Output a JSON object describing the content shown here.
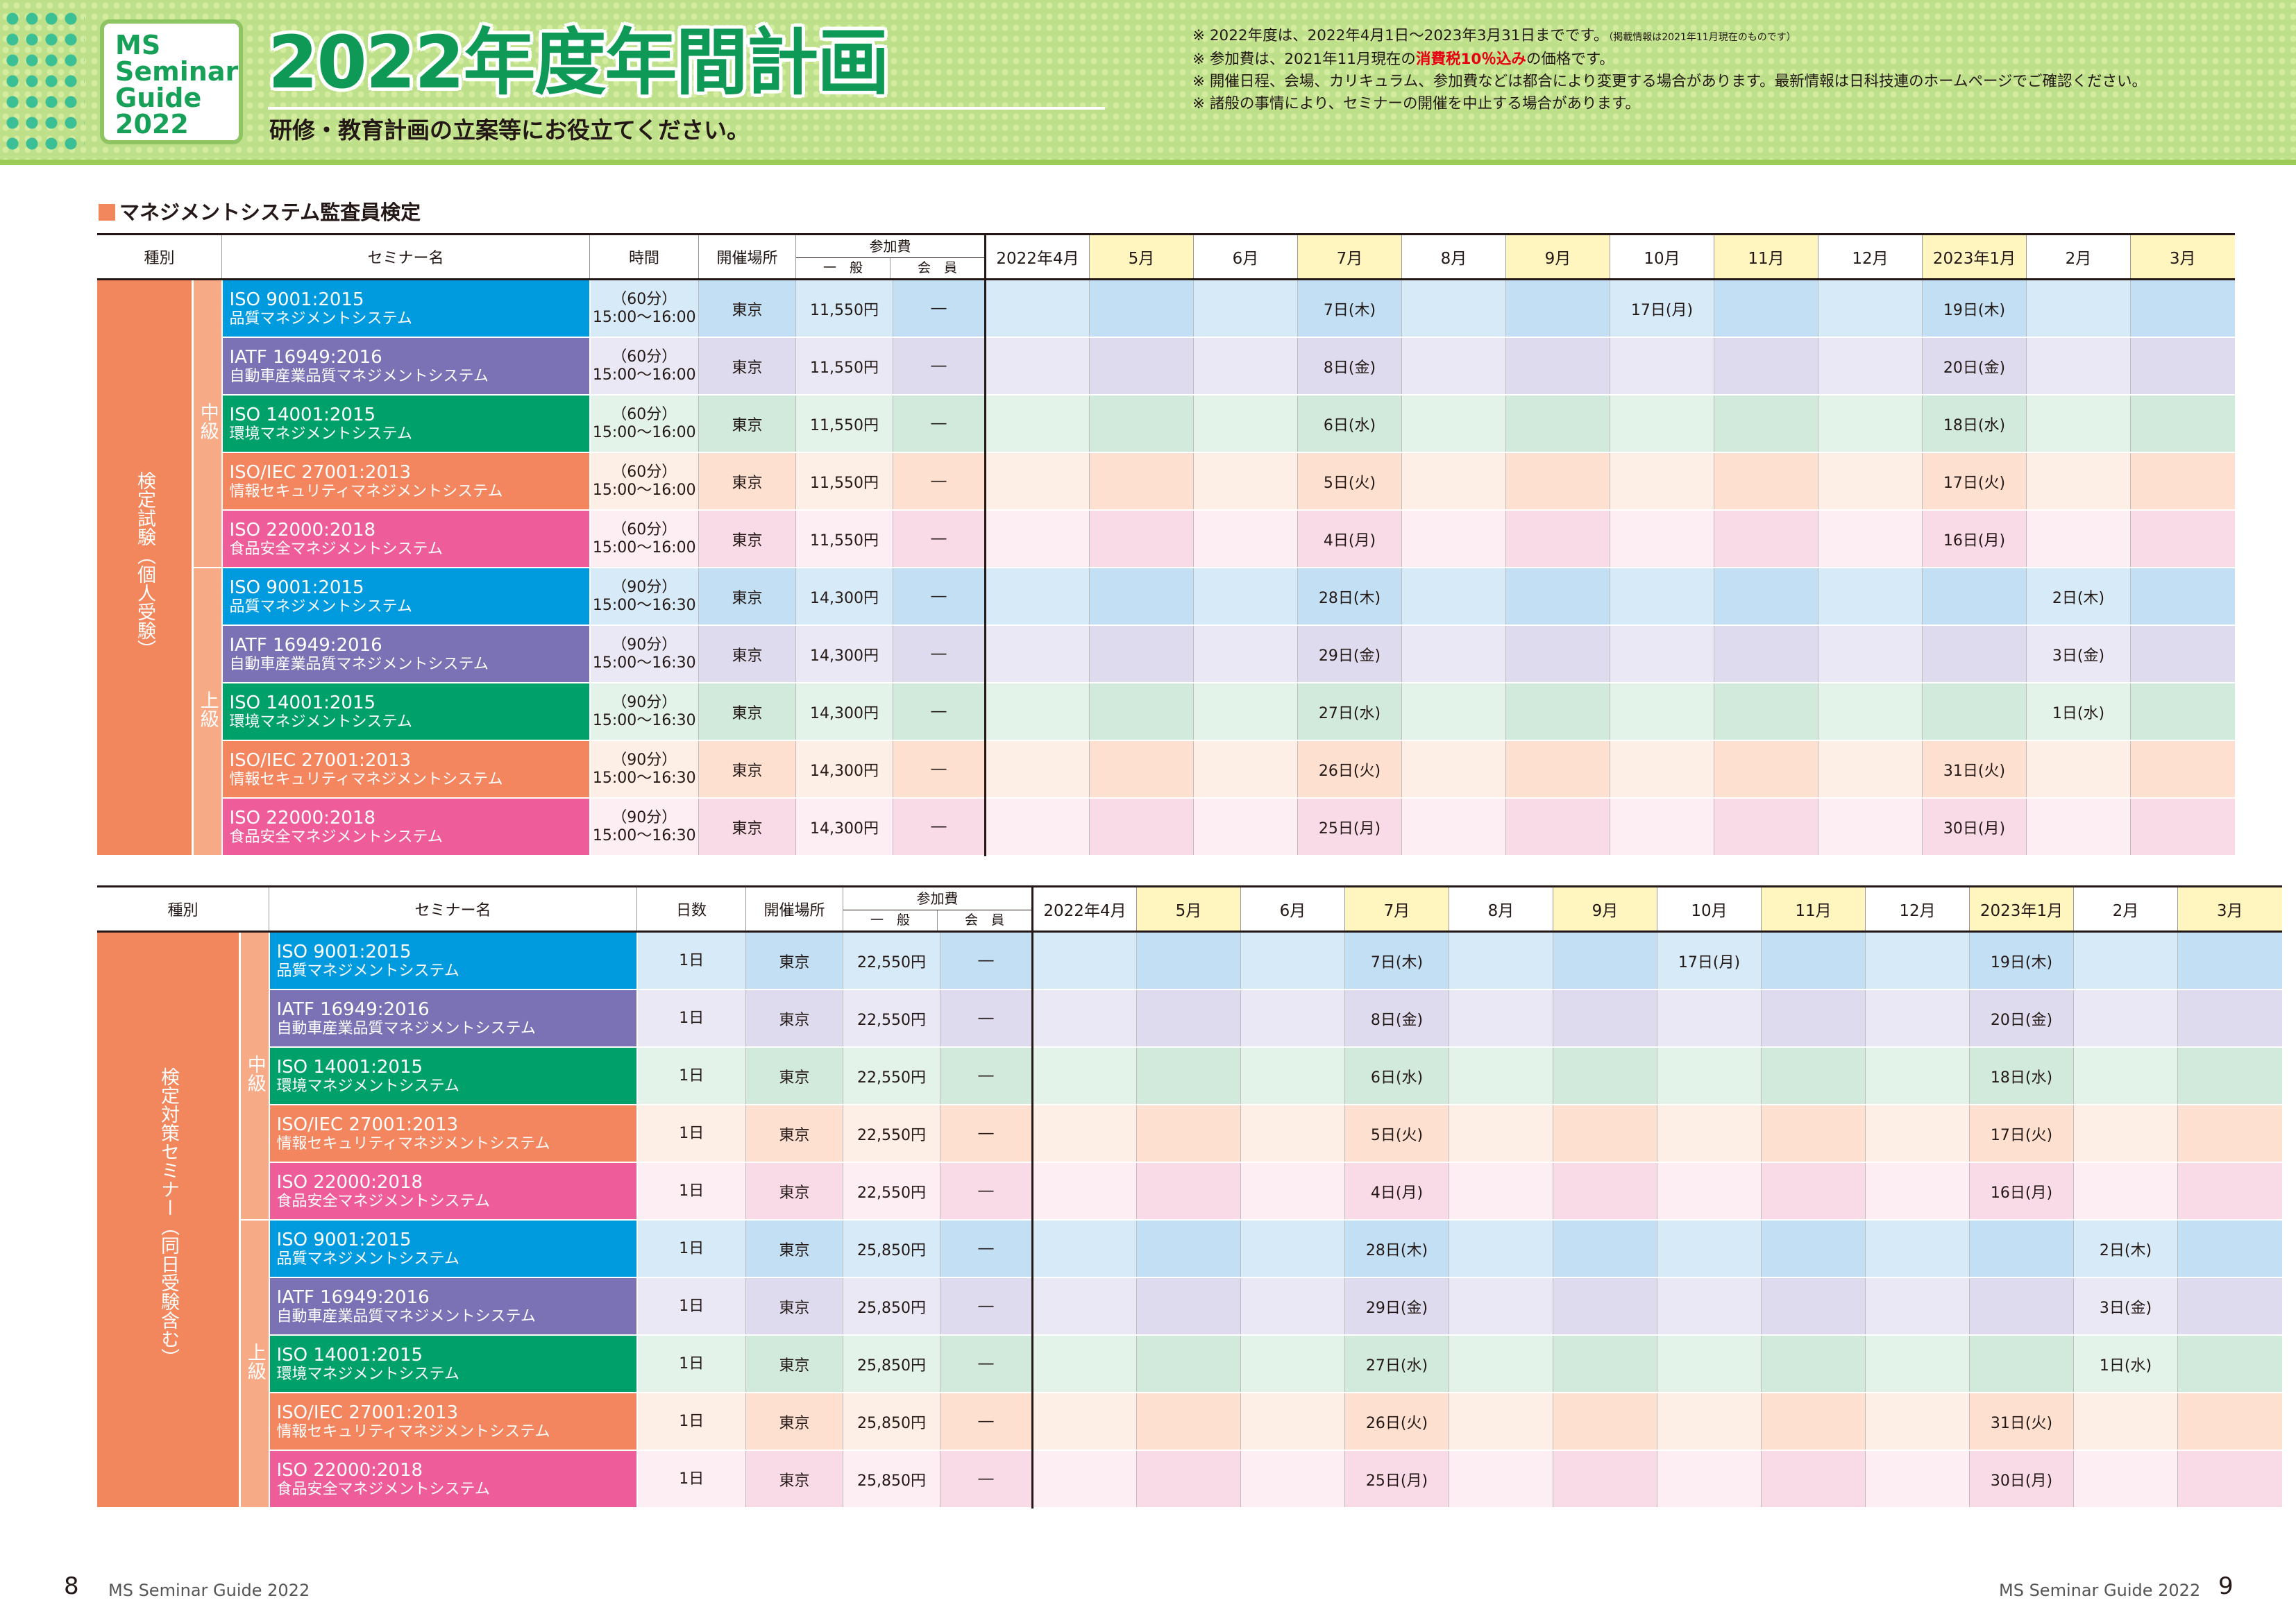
{
  "header": {
    "logo_lines": [
      "MS",
      "Seminar",
      "Guide",
      "2022"
    ],
    "title": "2022年度年間計画",
    "subtitle": "研修・教育計画の立案等にお役立てください。",
    "notes": [
      {
        "text": "※ 2022年度は、2022年4月1日～2023年3月31日までです。",
        "small": "（掲載情報は2021年11月現在のものです）"
      },
      {
        "pre": "※ 参加費は、2021年11月現在の",
        "red": "消費税10％込み",
        "post": "の価格です。"
      },
      {
        "text": "※ 開催日程、会場、カリキュラム、参加費などは都合により変更する場合があります。最新情報は日科技連のホームページでご確認ください。"
      },
      {
        "text": "※ 諸般の事情により、セミナーの開催を中止する場合があります。"
      }
    ]
  },
  "section_title": "マネジメントシステム監査員検定",
  "months": [
    "2022年4月",
    "5月",
    "6月",
    "7月",
    "8月",
    "9月",
    "10月",
    "11月",
    "12月",
    "2023年1月",
    "2月",
    "3月"
  ],
  "table1": {
    "headers": {
      "kind": "種別",
      "name": "セミナー名",
      "time": "時間",
      "place": "開催場所",
      "fee": "参加費",
      "fee_general": "一　般",
      "fee_member": "会　員"
    },
    "side_label": "検定試験（個人受験）",
    "levels": [
      "中級",
      "上級"
    ],
    "rows": [
      {
        "color": "blue",
        "name1": "ISO 9001:2015",
        "name2": "品質マネジメントシステム",
        "time1": "（60分）",
        "time2": "15:00～16:00",
        "place": "東京",
        "fee": "11,550円",
        "member": "―",
        "dates": [
          "",
          "",
          "",
          "7日(木)",
          "",
          "",
          "17日(月)",
          "",
          "",
          "19日(木)",
          "",
          ""
        ]
      },
      {
        "color": "purple",
        "name1": "IATF 16949:2016",
        "name2": "自動車産業品質マネジメントシステム",
        "time1": "（60分）",
        "time2": "15:00～16:00",
        "place": "東京",
        "fee": "11,550円",
        "member": "―",
        "dates": [
          "",
          "",
          "",
          "8日(金)",
          "",
          "",
          "",
          "",
          "",
          "20日(金)",
          "",
          ""
        ]
      },
      {
        "color": "green",
        "name1": "ISO 14001:2015",
        "name2": "環境マネジメントシステム",
        "time1": "（60分）",
        "time2": "15:00～16:00",
        "place": "東京",
        "fee": "11,550円",
        "member": "―",
        "dates": [
          "",
          "",
          "",
          "6日(水)",
          "",
          "",
          "",
          "",
          "",
          "18日(水)",
          "",
          ""
        ]
      },
      {
        "color": "orange",
        "name1": "ISO/IEC 27001:2013",
        "name2": "情報セキュリティマネジメントシステム",
        "time1": "（60分）",
        "time2": "15:00～16:00",
        "place": "東京",
        "fee": "11,550円",
        "member": "―",
        "dates": [
          "",
          "",
          "",
          "5日(火)",
          "",
          "",
          "",
          "",
          "",
          "17日(火)",
          "",
          ""
        ]
      },
      {
        "color": "pink",
        "name1": "ISO 22000:2018",
        "name2": "食品安全マネジメントシステム",
        "time1": "（60分）",
        "time2": "15:00～16:00",
        "place": "東京",
        "fee": "11,550円",
        "member": "―",
        "dates": [
          "",
          "",
          "",
          "4日(月)",
          "",
          "",
          "",
          "",
          "",
          "16日(月)",
          "",
          ""
        ]
      },
      {
        "color": "blue",
        "name1": "ISO 9001:2015",
        "name2": "品質マネジメントシステム",
        "time1": "（90分）",
        "time2": "15:00～16:30",
        "place": "東京",
        "fee": "14,300円",
        "member": "―",
        "dates": [
          "",
          "",
          "",
          "28日(木)",
          "",
          "",
          "",
          "",
          "",
          "",
          "2日(木)",
          ""
        ]
      },
      {
        "color": "purple",
        "name1": "IATF 16949:2016",
        "name2": "自動車産業品質マネジメントシステム",
        "time1": "（90分）",
        "time2": "15:00～16:30",
        "place": "東京",
        "fee": "14,300円",
        "member": "―",
        "dates": [
          "",
          "",
          "",
          "29日(金)",
          "",
          "",
          "",
          "",
          "",
          "",
          "3日(金)",
          ""
        ]
      },
      {
        "color": "green",
        "name1": "ISO 14001:2015",
        "name2": "環境マネジメントシステム",
        "time1": "（90分）",
        "time2": "15:00～16:30",
        "place": "東京",
        "fee": "14,300円",
        "member": "―",
        "dates": [
          "",
          "",
          "",
          "27日(水)",
          "",
          "",
          "",
          "",
          "",
          "",
          "1日(水)",
          ""
        ]
      },
      {
        "color": "orange",
        "name1": "ISO/IEC 27001:2013",
        "name2": "情報セキュリティマネジメントシステム",
        "time1": "（90分）",
        "time2": "15:00～16:30",
        "place": "東京",
        "fee": "14,300円",
        "member": "―",
        "dates": [
          "",
          "",
          "",
          "26日(火)",
          "",
          "",
          "",
          "",
          "",
          "31日(火)",
          "",
          ""
        ]
      },
      {
        "color": "pink",
        "name1": "ISO 22000:2018",
        "name2": "食品安全マネジメントシステム",
        "time1": "（90分）",
        "time2": "15:00～16:30",
        "place": "東京",
        "fee": "14,300円",
        "member": "―",
        "dates": [
          "",
          "",
          "",
          "25日(月)",
          "",
          "",
          "",
          "",
          "",
          "30日(月)",
          "",
          ""
        ]
      }
    ]
  },
  "table2": {
    "headers": {
      "kind": "種別",
      "name": "セミナー名",
      "time": "日数",
      "place": "開催場所",
      "fee": "参加費",
      "fee_general": "一　般",
      "fee_member": "会　員"
    },
    "side_label": "検定対策セミナー（同日受験含む）",
    "levels": [
      "中級",
      "上級"
    ],
    "rows": [
      {
        "color": "blue",
        "name1": "ISO 9001:2015",
        "name2": "品質マネジメントシステム",
        "time1": "1日",
        "time2": "",
        "place": "東京",
        "fee": "22,550円",
        "member": "―",
        "dates": [
          "",
          "",
          "",
          "7日(木)",
          "",
          "",
          "17日(月)",
          "",
          "",
          "19日(木)",
          "",
          ""
        ]
      },
      {
        "color": "purple",
        "name1": "IATF 16949:2016",
        "name2": "自動車産業品質マネジメントシステム",
        "time1": "1日",
        "time2": "",
        "place": "東京",
        "fee": "22,550円",
        "member": "―",
        "dates": [
          "",
          "",
          "",
          "8日(金)",
          "",
          "",
          "",
          "",
          "",
          "20日(金)",
          "",
          ""
        ]
      },
      {
        "color": "green",
        "name1": "ISO 14001:2015",
        "name2": "環境マネジメントシステム",
        "time1": "1日",
        "time2": "",
        "place": "東京",
        "fee": "22,550円",
        "member": "―",
        "dates": [
          "",
          "",
          "",
          "6日(水)",
          "",
          "",
          "",
          "",
          "",
          "18日(水)",
          "",
          ""
        ]
      },
      {
        "color": "orange",
        "name1": "ISO/IEC 27001:2013",
        "name2": "情報セキュリティマネジメントシステム",
        "time1": "1日",
        "time2": "",
        "place": "東京",
        "fee": "22,550円",
        "member": "―",
        "dates": [
          "",
          "",
          "",
          "5日(火)",
          "",
          "",
          "",
          "",
          "",
          "17日(火)",
          "",
          ""
        ]
      },
      {
        "color": "pink",
        "name1": "ISO 22000:2018",
        "name2": "食品安全マネジメントシステム",
        "time1": "1日",
        "time2": "",
        "place": "東京",
        "fee": "22,550円",
        "member": "―",
        "dates": [
          "",
          "",
          "",
          "4日(月)",
          "",
          "",
          "",
          "",
          "",
          "16日(月)",
          "",
          ""
        ]
      },
      {
        "color": "blue",
        "name1": "ISO 9001:2015",
        "name2": "品質マネジメントシステム",
        "time1": "1日",
        "time2": "",
        "place": "東京",
        "fee": "25,850円",
        "member": "―",
        "dates": [
          "",
          "",
          "",
          "28日(木)",
          "",
          "",
          "",
          "",
          "",
          "",
          "2日(木)",
          ""
        ]
      },
      {
        "color": "purple",
        "name1": "IATF 16949:2016",
        "name2": "自動車産業品質マネジメントシステム",
        "time1": "1日",
        "time2": "",
        "place": "東京",
        "fee": "25,850円",
        "member": "―",
        "dates": [
          "",
          "",
          "",
          "29日(金)",
          "",
          "",
          "",
          "",
          "",
          "",
          "3日(金)",
          ""
        ]
      },
      {
        "color": "green",
        "name1": "ISO 14001:2015",
        "name2": "環境マネジメントシステム",
        "time1": "1日",
        "time2": "",
        "place": "東京",
        "fee": "25,850円",
        "member": "―",
        "dates": [
          "",
          "",
          "",
          "27日(水)",
          "",
          "",
          "",
          "",
          "",
          "",
          "1日(水)",
          ""
        ]
      },
      {
        "color": "orange",
        "name1": "ISO/IEC 27001:2013",
        "name2": "情報セキュリティマネジメントシステム",
        "time1": "1日",
        "time2": "",
        "place": "東京",
        "fee": "25,850円",
        "member": "―",
        "dates": [
          "",
          "",
          "",
          "26日(火)",
          "",
          "",
          "",
          "",
          "",
          "31日(火)",
          "",
          ""
        ]
      },
      {
        "color": "pink",
        "name1": "ISO 22000:2018",
        "name2": "食品安全マネジメントシステム",
        "time1": "1日",
        "time2": "",
        "place": "東京",
        "fee": "25,850円",
        "member": "―",
        "dates": [
          "",
          "",
          "",
          "25日(月)",
          "",
          "",
          "",
          "",
          "",
          "30日(月)",
          "",
          ""
        ]
      }
    ]
  },
  "footer": {
    "left_page": "8",
    "left_text": "MS Seminar Guide 2022",
    "right_text": "MS Seminar Guide 2022",
    "right_page": "9"
  }
}
